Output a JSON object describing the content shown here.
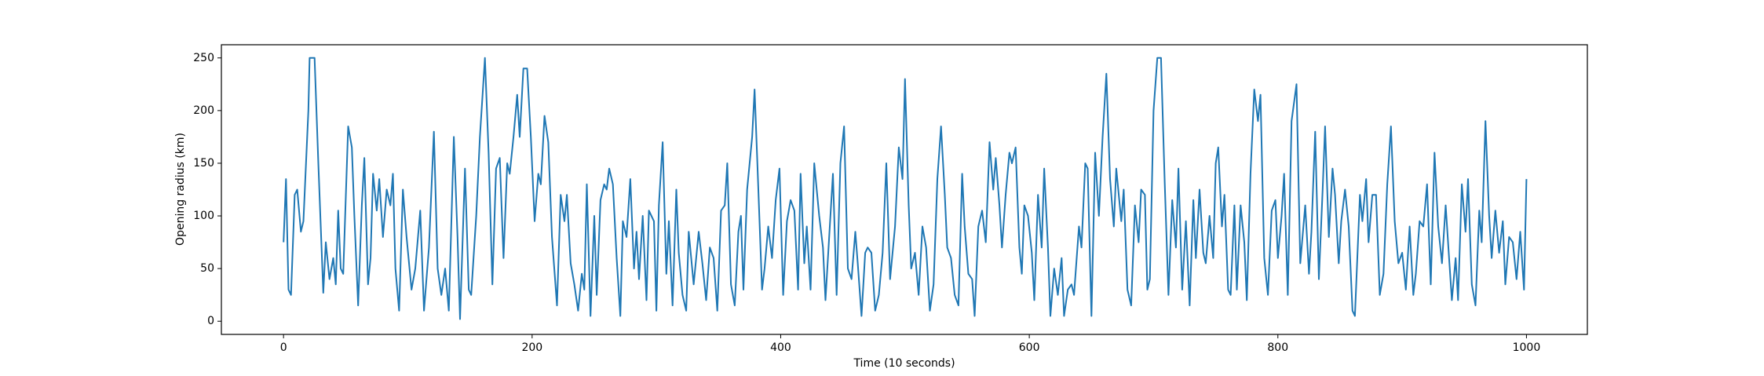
{
  "chart_data": {
    "type": "line",
    "x_label": "Time (10 seconds)",
    "y_label": "Opening radius (km)",
    "color": "#1f77b4",
    "x": [
      0,
      2,
      4,
      6,
      9,
      11,
      14,
      16,
      20,
      21,
      25,
      28,
      32,
      34,
      37,
      40,
      42,
      44,
      46,
      48,
      52,
      55,
      57,
      60,
      63,
      65,
      68,
      70,
      72,
      75,
      77,
      80,
      83,
      86,
      88,
      90,
      93,
      96,
      99,
      103,
      106,
      110,
      113,
      117,
      121,
      124,
      127,
      130,
      133,
      137,
      140,
      142,
      146,
      149,
      151,
      155,
      158,
      162,
      165,
      168,
      171,
      174,
      177,
      180,
      182,
      185,
      188,
      190,
      193,
      196,
      199,
      202,
      205,
      207,
      210,
      213,
      216,
      220,
      223,
      226,
      228,
      231,
      234,
      237,
      240,
      242,
      244,
      247,
      250,
      252,
      255,
      258,
      260,
      262,
      265,
      268,
      271,
      273,
      276,
      279,
      282,
      284,
      286,
      289,
      292,
      294,
      298,
      300,
      302,
      305,
      308,
      310,
      313,
      316,
      318,
      321,
      324,
      326,
      330,
      334,
      337,
      340,
      343,
      346,
      349,
      352,
      355,
      357,
      360,
      363,
      366,
      368,
      370,
      373,
      377,
      379,
      382,
      385,
      387,
      390,
      393,
      396,
      399,
      402,
      405,
      408,
      411,
      414,
      416,
      419,
      421,
      424,
      427,
      431,
      434,
      436,
      439,
      442,
      445,
      448,
      451,
      454,
      457,
      460,
      462,
      465,
      468,
      470,
      473,
      476,
      479,
      482,
      485,
      488,
      492,
      495,
      498,
      500,
      503,
      505,
      508,
      511,
      514,
      517,
      520,
      523,
      526,
      529,
      532,
      534,
      537,
      540,
      543,
      546,
      548,
      551,
      554,
      556,
      559,
      562,
      565,
      568,
      571,
      573,
      576,
      578,
      581,
      584,
      586,
      589,
      592,
      594,
      596,
      599,
      602,
      604,
      607,
      610,
      612,
      615,
      617,
      620,
      623,
      626,
      628,
      631,
      634,
      636,
      640,
      642,
      645,
      647,
      650,
      653,
      656,
      659,
      662,
      665,
      668,
      670,
      674,
      676,
      679,
      682,
      685,
      688,
      690,
      693,
      695,
      697,
      700,
      703,
      706,
      709,
      712,
      715,
      718,
      720,
      723,
      726,
      729,
      732,
      734,
      737,
      740,
      742,
      745,
      748,
      750,
      752,
      755,
      757,
      760,
      762,
      765,
      767,
      770,
      773,
      775,
      778,
      781,
      784,
      786,
      789,
      792,
      795,
      798,
      800,
      803,
      805,
      808,
      811,
      815,
      818,
      822,
      825,
      827,
      830,
      833,
      836,
      838,
      841,
      844,
      846,
      849,
      851,
      854,
      857,
      860,
      862,
      866,
      868,
      871,
      873,
      876,
      879,
      882,
      885,
      888,
      891,
      894,
      897,
      900,
      903,
      906,
      909,
      911,
      914,
      917,
      920,
      923,
      926,
      929,
      932,
      935,
      938,
      940,
      943,
      945,
      948,
      951,
      953,
      956,
      959,
      962,
      964,
      967,
      970,
      972,
      975,
      978,
      981,
      983,
      986,
      989,
      992,
      995,
      998,
      1000
    ],
    "values": [
      75,
      135,
      30,
      25,
      120,
      125,
      85,
      95,
      200,
      250,
      250,
      150,
      27,
      75,
      40,
      60,
      35,
      105,
      50,
      45,
      185,
      165,
      100,
      15,
      110,
      155,
      35,
      60,
      140,
      105,
      135,
      80,
      125,
      110,
      140,
      50,
      10,
      125,
      80,
      30,
      50,
      105,
      10,
      70,
      180,
      50,
      25,
      50,
      10,
      175,
      80,
      2,
      145,
      30,
      25,
      100,
      175,
      250,
      160,
      35,
      145,
      155,
      60,
      150,
      140,
      175,
      215,
      175,
      240,
      240,
      175,
      95,
      140,
      130,
      195,
      170,
      80,
      15,
      120,
      95,
      120,
      55,
      35,
      10,
      45,
      30,
      130,
      5,
      100,
      25,
      115,
      130,
      125,
      145,
      130,
      60,
      5,
      95,
      80,
      135,
      50,
      85,
      40,
      100,
      20,
      105,
      95,
      10,
      110,
      170,
      45,
      95,
      15,
      125,
      65,
      25,
      10,
      85,
      35,
      85,
      55,
      20,
      70,
      60,
      10,
      105,
      110,
      150,
      35,
      15,
      85,
      100,
      30,
      125,
      175,
      220,
      125,
      30,
      50,
      90,
      60,
      115,
      145,
      25,
      95,
      115,
      105,
      30,
      140,
      55,
      90,
      30,
      150,
      100,
      70,
      20,
      80,
      140,
      25,
      150,
      185,
      50,
      40,
      85,
      55,
      5,
      65,
      70,
      65,
      10,
      25,
      65,
      150,
      40,
      90,
      165,
      135,
      230,
      110,
      50,
      65,
      25,
      90,
      70,
      10,
      35,
      135,
      185,
      120,
      70,
      60,
      25,
      15,
      140,
      90,
      45,
      40,
      5,
      90,
      105,
      75,
      170,
      125,
      155,
      110,
      70,
      120,
      160,
      150,
      165,
      70,
      45,
      110,
      100,
      65,
      20,
      120,
      70,
      145,
      70,
      5,
      50,
      25,
      60,
      5,
      30,
      35,
      25,
      90,
      70,
      150,
      145,
      5,
      160,
      100,
      175,
      235,
      135,
      90,
      145,
      95,
      125,
      30,
      15,
      110,
      75,
      125,
      120,
      30,
      40,
      200,
      250,
      250,
      130,
      25,
      115,
      70,
      145,
      30,
      95,
      15,
      115,
      60,
      125,
      65,
      55,
      100,
      60,
      150,
      165,
      90,
      120,
      30,
      25,
      110,
      30,
      110,
      75,
      20,
      140,
      220,
      190,
      215,
      60,
      25,
      105,
      115,
      60,
      100,
      140,
      25,
      190,
      225,
      55,
      110,
      45,
      85,
      180,
      40,
      125,
      185,
      80,
      145,
      120,
      55,
      95,
      125,
      90,
      10,
      5,
      120,
      95,
      135,
      75,
      120,
      120,
      25,
      45,
      130,
      185,
      95,
      55,
      65,
      30,
      90,
      25,
      45,
      95,
      90,
      130,
      35,
      160,
      90,
      55,
      110,
      55,
      20,
      60,
      20,
      130,
      85,
      135,
      35,
      15,
      105,
      75,
      190,
      100,
      60,
      105,
      65,
      95,
      35,
      80,
      75,
      40,
      85,
      30,
      135
    ],
    "xlim": [
      -50,
      1049
    ],
    "ylim": [
      -12.5,
      262.5
    ],
    "xticks": [
      0,
      200,
      400,
      600,
      800,
      1000
    ],
    "yticks": [
      0,
      50,
      100,
      150,
      200,
      250
    ]
  }
}
